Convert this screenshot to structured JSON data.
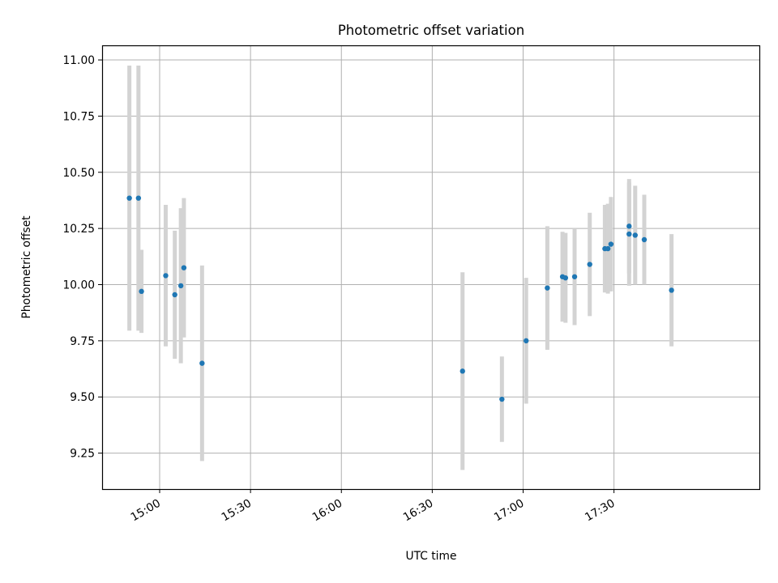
{
  "chart_data": {
    "type": "scatter",
    "title": "Photometric offset variation",
    "xlabel": "UTC time",
    "ylabel": "Photometric offset",
    "x_ticks": [
      "15:00",
      "15:30",
      "16:00",
      "16:30",
      "17:00",
      "17:30"
    ],
    "y_ticks": [
      "9.25",
      "9.50",
      "9.75",
      "10.00",
      "10.25",
      "10.50",
      "10.75",
      "11.00"
    ],
    "xlim": [
      "14:41",
      "18:18"
    ],
    "ylim": [
      9.09,
      11.065
    ],
    "grid": true,
    "colors": {
      "point": "#1f77b4",
      "errorbar": "#d3d3d3",
      "grid": "#b0b0b0"
    },
    "points": [
      {
        "time": "14:50",
        "y": 10.385,
        "yerr": 0.59
      },
      {
        "time": "14:53",
        "y": 10.385,
        "yerr": 0.59
      },
      {
        "time": "14:54",
        "y": 9.97,
        "yerr": 0.185
      },
      {
        "time": "15:02",
        "y": 10.04,
        "yerr": 0.315
      },
      {
        "time": "15:05",
        "y": 9.955,
        "yerr": 0.285
      },
      {
        "time": "15:07",
        "y": 9.995,
        "yerr": 0.345
      },
      {
        "time": "15:08",
        "y": 10.075,
        "yerr": 0.31
      },
      {
        "time": "15:14",
        "y": 9.65,
        "yerr": 0.435
      },
      {
        "time": "16:40",
        "y": 9.615,
        "yerr": 0.44
      },
      {
        "time": "16:53",
        "y": 9.49,
        "yerr": 0.19
      },
      {
        "time": "17:01",
        "y": 9.75,
        "yerr": 0.28
      },
      {
        "time": "17:08",
        "y": 9.985,
        "yerr": 0.275
      },
      {
        "time": "17:13",
        "y": 10.035,
        "yerr": 0.2
      },
      {
        "time": "17:14",
        "y": 10.03,
        "yerr": 0.2
      },
      {
        "time": "17:17",
        "y": 10.035,
        "yerr": 0.215
      },
      {
        "time": "17:22",
        "y": 10.09,
        "yerr": 0.23
      },
      {
        "time": "17:27",
        "y": 10.16,
        "yerr": 0.195
      },
      {
        "time": "17:28",
        "y": 10.16,
        "yerr": 0.2
      },
      {
        "time": "17:29",
        "y": 10.18,
        "yerr": 0.21
      },
      {
        "time": "17:35",
        "y": 10.26,
        "yerr": 0.21
      },
      {
        "time": "17:35",
        "y": 10.225,
        "yerr": 0.23
      },
      {
        "time": "17:37",
        "y": 10.22,
        "yerr": 0.22
      },
      {
        "time": "17:40",
        "y": 10.2,
        "yerr": 0.2
      },
      {
        "time": "17:49",
        "y": 9.975,
        "yerr": 0.25
      }
    ]
  }
}
